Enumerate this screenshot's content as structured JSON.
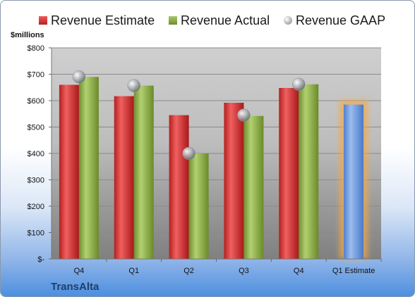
{
  "chart_data": {
    "type": "bar",
    "ylabel": "$millions",
    "ylim": [
      0,
      800
    ],
    "yticks": [
      0,
      100,
      200,
      300,
      400,
      500,
      600,
      700,
      800
    ],
    "ytick_labels": [
      "$-",
      "$100",
      "$200",
      "$300",
      "$400",
      "$500",
      "$600",
      "$700",
      "$800"
    ],
    "categories": [
      "Q4",
      "Q1",
      "Q2",
      "Q3",
      "Q4",
      "Q1 Estimate"
    ],
    "series": [
      {
        "name": "Revenue Estimate",
        "kind": "bar",
        "color": "#d93a3a",
        "values": [
          660,
          617,
          545,
          592,
          648,
          null
        ]
      },
      {
        "name": "Revenue Actual",
        "kind": "bar",
        "color": "#8fb04a",
        "values": [
          690,
          657,
          400,
          542,
          662,
          null
        ]
      },
      {
        "name": "Revenue GAAP",
        "kind": "marker",
        "color": "#b9bcc2",
        "values": [
          690,
          657,
          400,
          545,
          662,
          null
        ]
      }
    ],
    "forecast": {
      "category": "Q1 Estimate",
      "value": 585,
      "color": "#6f9ee3",
      "glow": "#f3a94a"
    },
    "legend_position": "top",
    "grid": true,
    "company": "TransAlta"
  }
}
